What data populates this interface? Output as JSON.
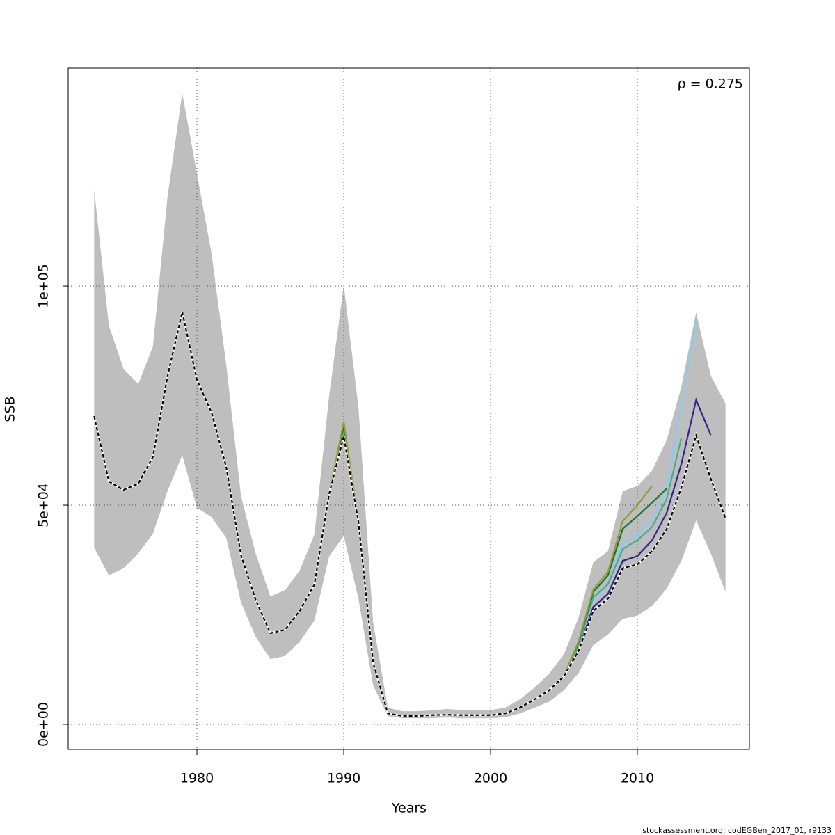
{
  "chart_data": {
    "type": "line",
    "x": [
      1973,
      1974,
      1975,
      1976,
      1977,
      1978,
      1979,
      1980,
      1981,
      1982,
      1983,
      1984,
      1985,
      1986,
      1987,
      1988,
      1989,
      1990,
      1991,
      1992,
      1993,
      1994,
      1995,
      1996,
      1997,
      1998,
      1999,
      2000,
      2001,
      2002,
      2003,
      2004,
      2005,
      2006,
      2007,
      2008,
      2009,
      2010,
      2011,
      2012,
      2013,
      2014,
      2015,
      2016
    ],
    "xlabel": "Years",
    "ylabel": "SSB",
    "annotation": "ρ = 0.275",
    "footer": "stockassessment.org, codEGBen_2017_01, r9133",
    "xlim": [
      1971.23,
      2017.63
    ],
    "ylim": [
      -5714,
      149700
    ],
    "xticks": [
      1980,
      1990,
      2000,
      2010
    ],
    "yticks": [
      {
        "value": 0,
        "label": "0e+00"
      },
      {
        "value": 50000,
        "label": "5e+04"
      },
      {
        "value": 100000,
        "label": "1e+05"
      }
    ],
    "grid": true,
    "band": {
      "color": "#bebebe",
      "lower": [
        40300,
        34000,
        35600,
        39000,
        43500,
        53300,
        61400,
        49400,
        47300,
        42500,
        27800,
        20000,
        14900,
        15600,
        18900,
        23700,
        38300,
        43000,
        28700,
        8900,
        1900,
        1400,
        1400,
        1400,
        1600,
        1400,
        1400,
        1400,
        1600,
        2500,
        3800,
        5200,
        7800,
        11700,
        18100,
        20500,
        24100,
        24800,
        27000,
        31000,
        37300,
        46500,
        39000,
        30200
      ],
      "upper": [
        122000,
        91000,
        81100,
        77600,
        86200,
        120500,
        144000,
        125600,
        107300,
        81900,
        52100,
        39000,
        29200,
        30600,
        35100,
        43300,
        74800,
        100200,
        72400,
        23200,
        3800,
        3000,
        3000,
        3200,
        3500,
        3300,
        3300,
        3300,
        3800,
        5700,
        8400,
        11600,
        16000,
        24400,
        37000,
        39500,
        53200,
        54400,
        57900,
        64900,
        77100,
        94000,
        79500,
        73200
      ]
    },
    "series": [
      {
        "color": "#332288",
        "values": [
          70300,
          55400,
          53500,
          54900,
          61000,
          79500,
          94100,
          78600,
          71100,
          58600,
          38600,
          28400,
          20800,
          21600,
          25900,
          31900,
          52500,
          66500,
          46200,
          14100,
          2500,
          1900,
          1900,
          2100,
          2200,
          2100,
          2100,
          2100,
          2500,
          3800,
          5700,
          7800,
          11000,
          17300,
          26800,
          29800,
          37300,
          38400,
          42000,
          48300,
          59500,
          74000,
          66000,
          null
        ]
      },
      {
        "color": "#88ccee",
        "values": [
          70300,
          55400,
          53500,
          54900,
          61000,
          79500,
          94100,
          78600,
          71100,
          58600,
          38600,
          28400,
          20800,
          21600,
          25900,
          31900,
          52500,
          67000,
          46200,
          14100,
          2500,
          1900,
          1900,
          2100,
          2200,
          2100,
          2100,
          2100,
          2500,
          3800,
          5700,
          7800,
          11000,
          18000,
          28600,
          31700,
          41600,
          43500,
          46500,
          54000,
          73000,
          92200,
          null,
          null
        ]
      },
      {
        "color": "#44aa99",
        "values": [
          70300,
          55400,
          53500,
          54900,
          61000,
          79500,
          94100,
          78600,
          71100,
          58600,
          38600,
          28400,
          20800,
          21600,
          25900,
          31900,
          52500,
          67500,
          46200,
          14100,
          2500,
          1900,
          1900,
          2100,
          2200,
          2100,
          2100,
          2100,
          2500,
          3800,
          5700,
          7800,
          11000,
          18200,
          29000,
          32000,
          40000,
          42000,
          45000,
          51500,
          65400,
          null,
          null,
          null
        ]
      },
      {
        "color": "#117733",
        "values": [
          70300,
          55400,
          53500,
          54900,
          61000,
          79500,
          94100,
          78600,
          71100,
          58600,
          38600,
          28400,
          20800,
          21600,
          25900,
          31900,
          52500,
          68000,
          46200,
          14100,
          2500,
          1900,
          1900,
          2100,
          2200,
          2100,
          2100,
          2100,
          2500,
          3800,
          5700,
          7800,
          11000,
          18800,
          30200,
          34000,
          44600,
          47500,
          50600,
          53800,
          null,
          null,
          null,
          null
        ]
      },
      {
        "color": "#999933",
        "values": [
          70300,
          55400,
          53500,
          54900,
          61000,
          79500,
          94100,
          78600,
          71100,
          58600,
          38600,
          28400,
          20800,
          21600,
          25900,
          31900,
          52500,
          69000,
          46200,
          14100,
          2500,
          1900,
          1900,
          2100,
          2200,
          2100,
          2100,
          2100,
          2500,
          3800,
          5700,
          7800,
          11000,
          19000,
          30800,
          34800,
          46400,
          50000,
          54400,
          null,
          null,
          null,
          null,
          null
        ]
      },
      {
        "color": "#000000",
        "dashed": true,
        "values": [
          70300,
          55400,
          53500,
          54900,
          61000,
          79500,
          94100,
          78600,
          71100,
          58600,
          38600,
          28400,
          20800,
          21600,
          25900,
          31900,
          52500,
          65700,
          46200,
          14100,
          2500,
          1900,
          1900,
          2100,
          2200,
          2100,
          2100,
          2100,
          2500,
          3800,
          5700,
          7800,
          11000,
          16800,
          25900,
          28700,
          35600,
          36500,
          39500,
          44600,
          54100,
          65900,
          56000,
          47000
        ]
      }
    ]
  }
}
